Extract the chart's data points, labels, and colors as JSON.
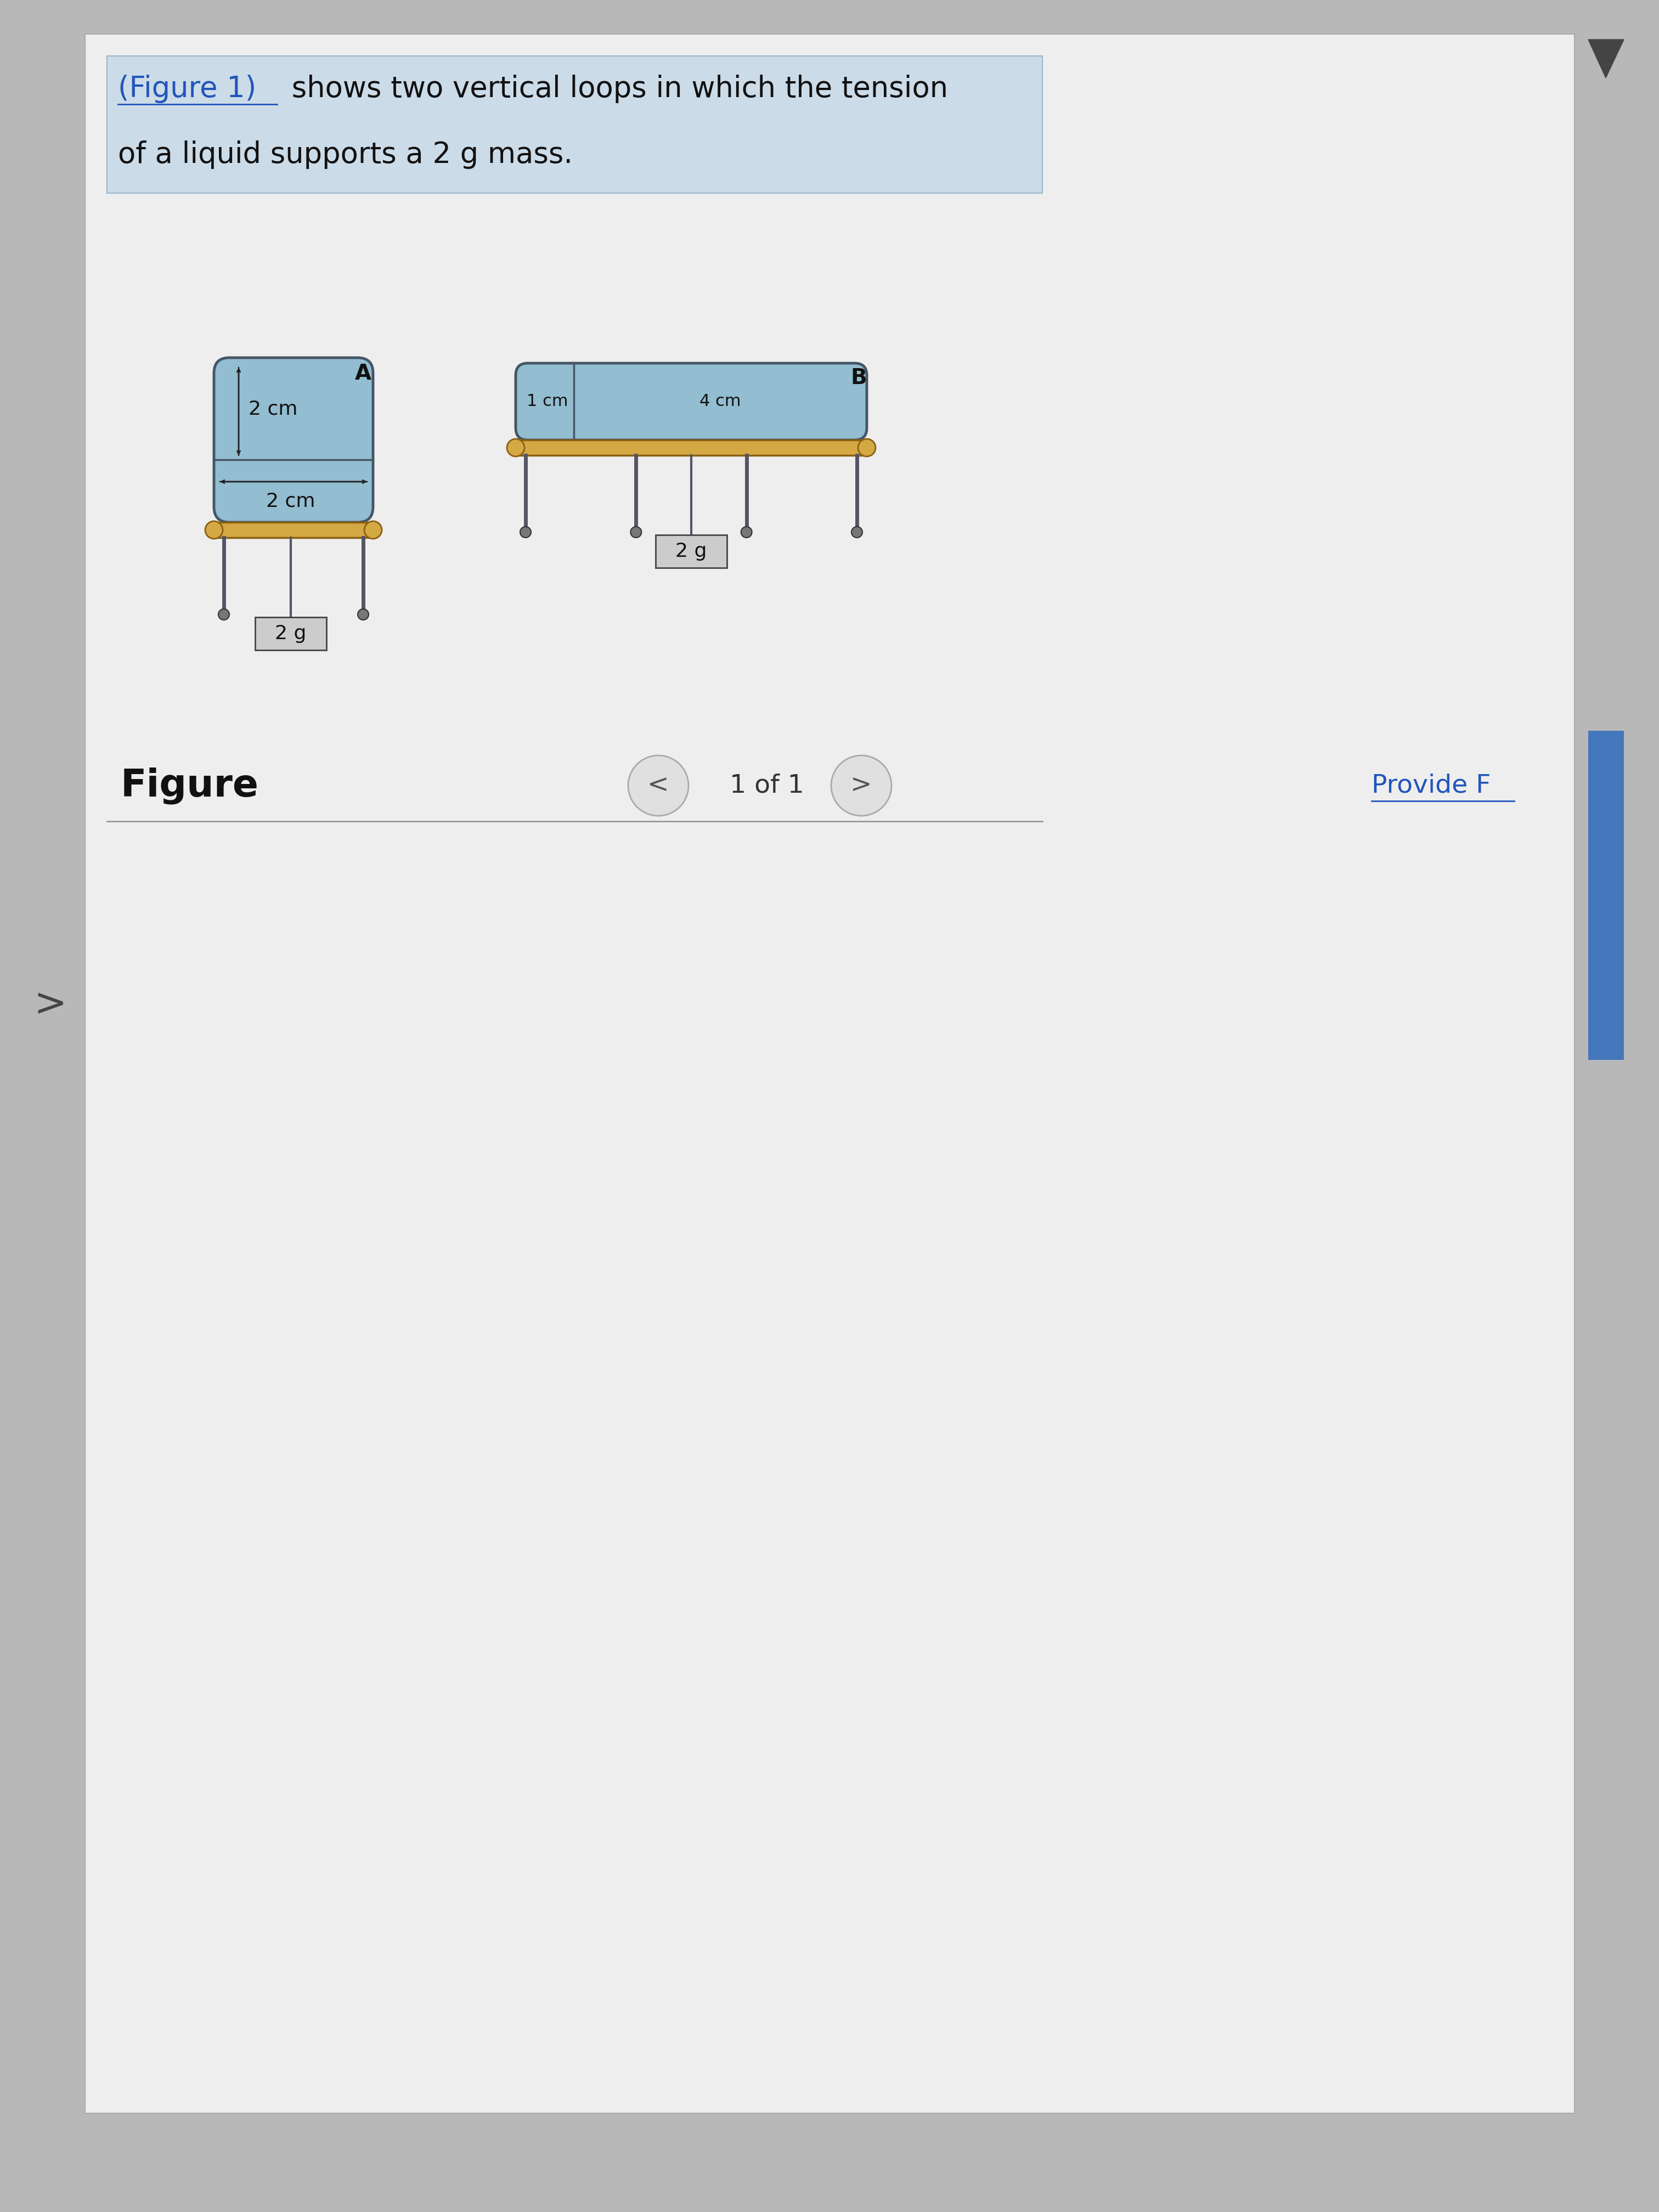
{
  "bg_color": "#b8b8b8",
  "page_bg": "#e8e8e8",
  "content_bg": "#eeeeee",
  "header_bg": "#ccdbe8",
  "liquid_color_A": "#93bdd0",
  "liquid_color_B": "#93bdd0",
  "frame_border_color": "#445566",
  "bar_color_fill": "#d4a843",
  "bar_color_edge": "#8B6010",
  "leg_color": "#555566",
  "mass_box_color": "#cccccc",
  "mass_box_edge": "#444444",
  "arrow_color": "#222222",
  "text_color": "#111111",
  "link_color": "#2255bb",
  "nav_circle_color": "#e0e0e0",
  "nav_circle_edge": "#aaaaaa",
  "scrollbar_color": "#4477bb",
  "header_line1": "(Figure 1) shows two vertical loops in which the tension",
  "header_line2": "of a liquid supports a 2 g mass.",
  "figure_label": "Figure",
  "nav_text": "1 of 1",
  "provide_text": "Provide F",
  "label_A": "A",
  "label_B": "B",
  "label_2g": "2 g",
  "label_2cm_v": "2 cm",
  "label_2cm_h": "2 cm",
  "label_1cm": "1 cm",
  "label_4cm": "4 cm",
  "left_arrow": ">"
}
